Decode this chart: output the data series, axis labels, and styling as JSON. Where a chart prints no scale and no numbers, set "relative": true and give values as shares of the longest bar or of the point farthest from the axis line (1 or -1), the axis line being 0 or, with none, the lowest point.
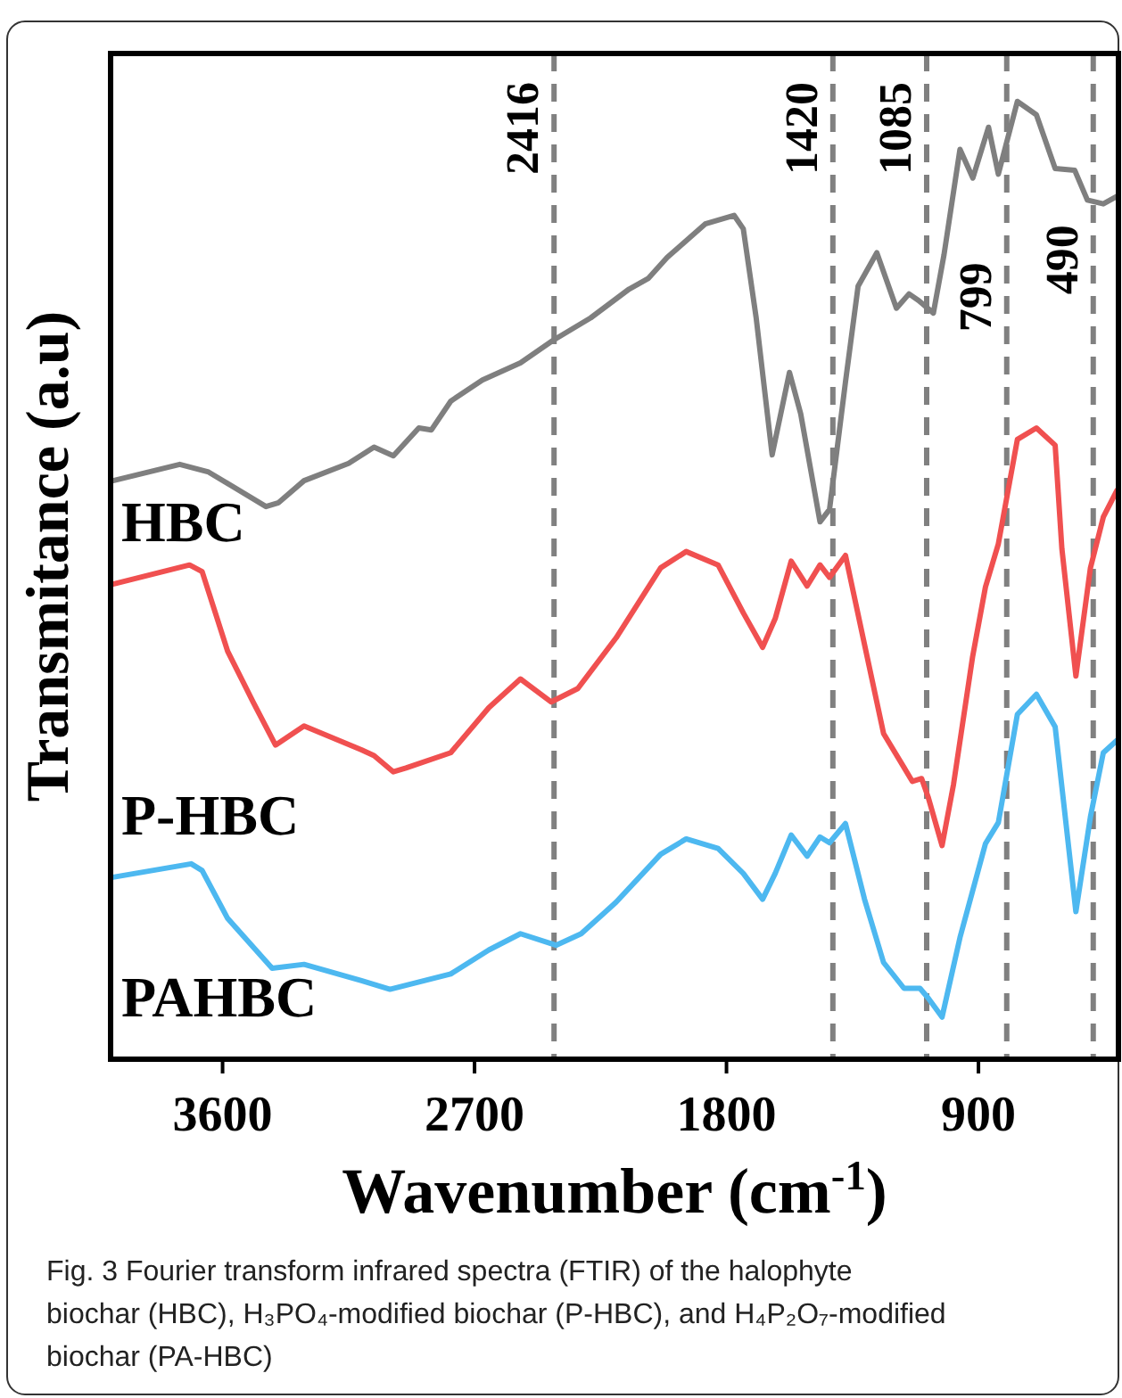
{
  "chart_data": {
    "type": "line",
    "relative": true,
    "xlabel": "Wavenumber (cm$^{-1}$)",
    "ylabel": "Transmitance (a.u)",
    "xlim": [
      4000,
      400
    ],
    "xticks": [
      3600,
      2700,
      1800,
      900
    ],
    "x": [
      3991,
      3753,
      3650,
      3445,
      3400,
      3309,
      3150,
      3059,
      2990,
      2899,
      2854,
      2785,
      2672,
      2536,
      2422,
      2285,
      2148,
      2080,
      2012,
      1876,
      1773,
      1740,
      1694,
      1637,
      1575,
      1535,
      1466,
      1432,
      1375,
      1330,
      1263,
      1193,
      1148,
      1113,
      1061,
      1023,
      966,
      920,
      864,
      829,
      761,
      693,
      626,
      556,
      511,
      454,
      405
    ],
    "series": [
      {
        "name": "HBC",
        "color": "#7f7f7f",
        "values": [
          0.604,
          0.621,
          0.613,
          0.577,
          0.581,
          0.604,
          0.622,
          0.639,
          0.63,
          0.659,
          0.657,
          0.687,
          0.709,
          0.727,
          0.75,
          0.774,
          0.804,
          0.815,
          0.837,
          0.872,
          0.881,
          0.867,
          0.774,
          0.631,
          0.717,
          0.674,
          0.561,
          0.574,
          0.707,
          0.807,
          0.842,
          0.784,
          0.799,
          0.792,
          0.779,
          0.84,
          0.95,
          0.92,
          0.973,
          0.924,
          1.0,
          0.986,
          0.93,
          0.928,
          0.897,
          0.893,
          0.901
        ]
      },
      {
        "name": "P-HBC",
        "color": "#f05050",
        "x": [
          3991,
          3718,
          3673,
          3582,
          3491,
          3411,
          3309,
          3104,
          3059,
          2990,
          2945,
          2785,
          2649,
          2536,
          2426,
          2331,
          2194,
          2035,
          1944,
          1830,
          1740,
          1671,
          1626,
          1569,
          1512,
          1466,
          1432,
          1375,
          1307,
          1239,
          1136,
          1103,
          1080,
          1030,
          989,
          921,
          875,
          829,
          761,
          693,
          626,
          602,
          552,
          500,
          454,
          405
        ],
        "values": [
          0.496,
          0.516,
          0.509,
          0.426,
          0.373,
          0.328,
          0.348,
          0.323,
          0.317,
          0.3,
          0.304,
          0.32,
          0.367,
          0.397,
          0.373,
          0.387,
          0.44,
          0.513,
          0.53,
          0.516,
          0.466,
          0.43,
          0.46,
          0.52,
          0.494,
          0.516,
          0.503,
          0.526,
          0.433,
          0.34,
          0.29,
          0.293,
          0.274,
          0.223,
          0.287,
          0.42,
          0.493,
          0.538,
          0.647,
          0.659,
          0.641,
          0.533,
          0.4,
          0.513,
          0.566,
          0.594
        ]
      },
      {
        "name": "PAHBC",
        "color": "#4db8f0",
        "x": [
          3991,
          3712,
          3673,
          3582,
          3423,
          3309,
          3104,
          3002,
          2785,
          2649,
          2536,
          2409,
          2319,
          2194,
          2035,
          1944,
          1830,
          1740,
          1671,
          1626,
          1569,
          1512,
          1466,
          1432,
          1375,
          1307,
          1239,
          1166,
          1109,
          1080,
          1030,
          966,
          875,
          829,
          761,
          693,
          626,
          552,
          500,
          454,
          405
        ],
        "values": [
          0.19,
          0.204,
          0.197,
          0.147,
          0.095,
          0.099,
          0.082,
          0.073,
          0.089,
          0.114,
          0.131,
          0.119,
          0.131,
          0.164,
          0.214,
          0.23,
          0.22,
          0.194,
          0.167,
          0.194,
          0.234,
          0.212,
          0.232,
          0.226,
          0.246,
          0.167,
          0.101,
          0.074,
          0.074,
          0.064,
          0.044,
          0.127,
          0.225,
          0.247,
          0.36,
          0.381,
          0.347,
          0.154,
          0.253,
          0.32,
          0.333
        ]
      }
    ],
    "ref_lines": [
      {
        "axis": "x",
        "value": 2416,
        "label": "2416",
        "color": "#808080",
        "line_style": "dashed"
      },
      {
        "axis": "x",
        "value": 1420,
        "label": "1420",
        "color": "#808080",
        "line_style": "dashed"
      },
      {
        "axis": "x",
        "value": 1085,
        "label": "1085",
        "color": "#808080",
        "line_style": "dashed"
      },
      {
        "axis": "x",
        "value": 799,
        "label": "799",
        "color": "#808080",
        "line_style": "dashed"
      },
      {
        "axis": "x",
        "value": 490,
        "label": "490",
        "color": "#808080",
        "line_style": "dashed"
      }
    ],
    "annotations": [
      "Fig. 3  Fourier transform infrared spectra (FTIR) of the halophyte biochar (HBC), H₃PO₄-modified biochar (P-HBC), and H₄P₂O₇-modified biochar (PA-HBC)"
    ]
  }
}
